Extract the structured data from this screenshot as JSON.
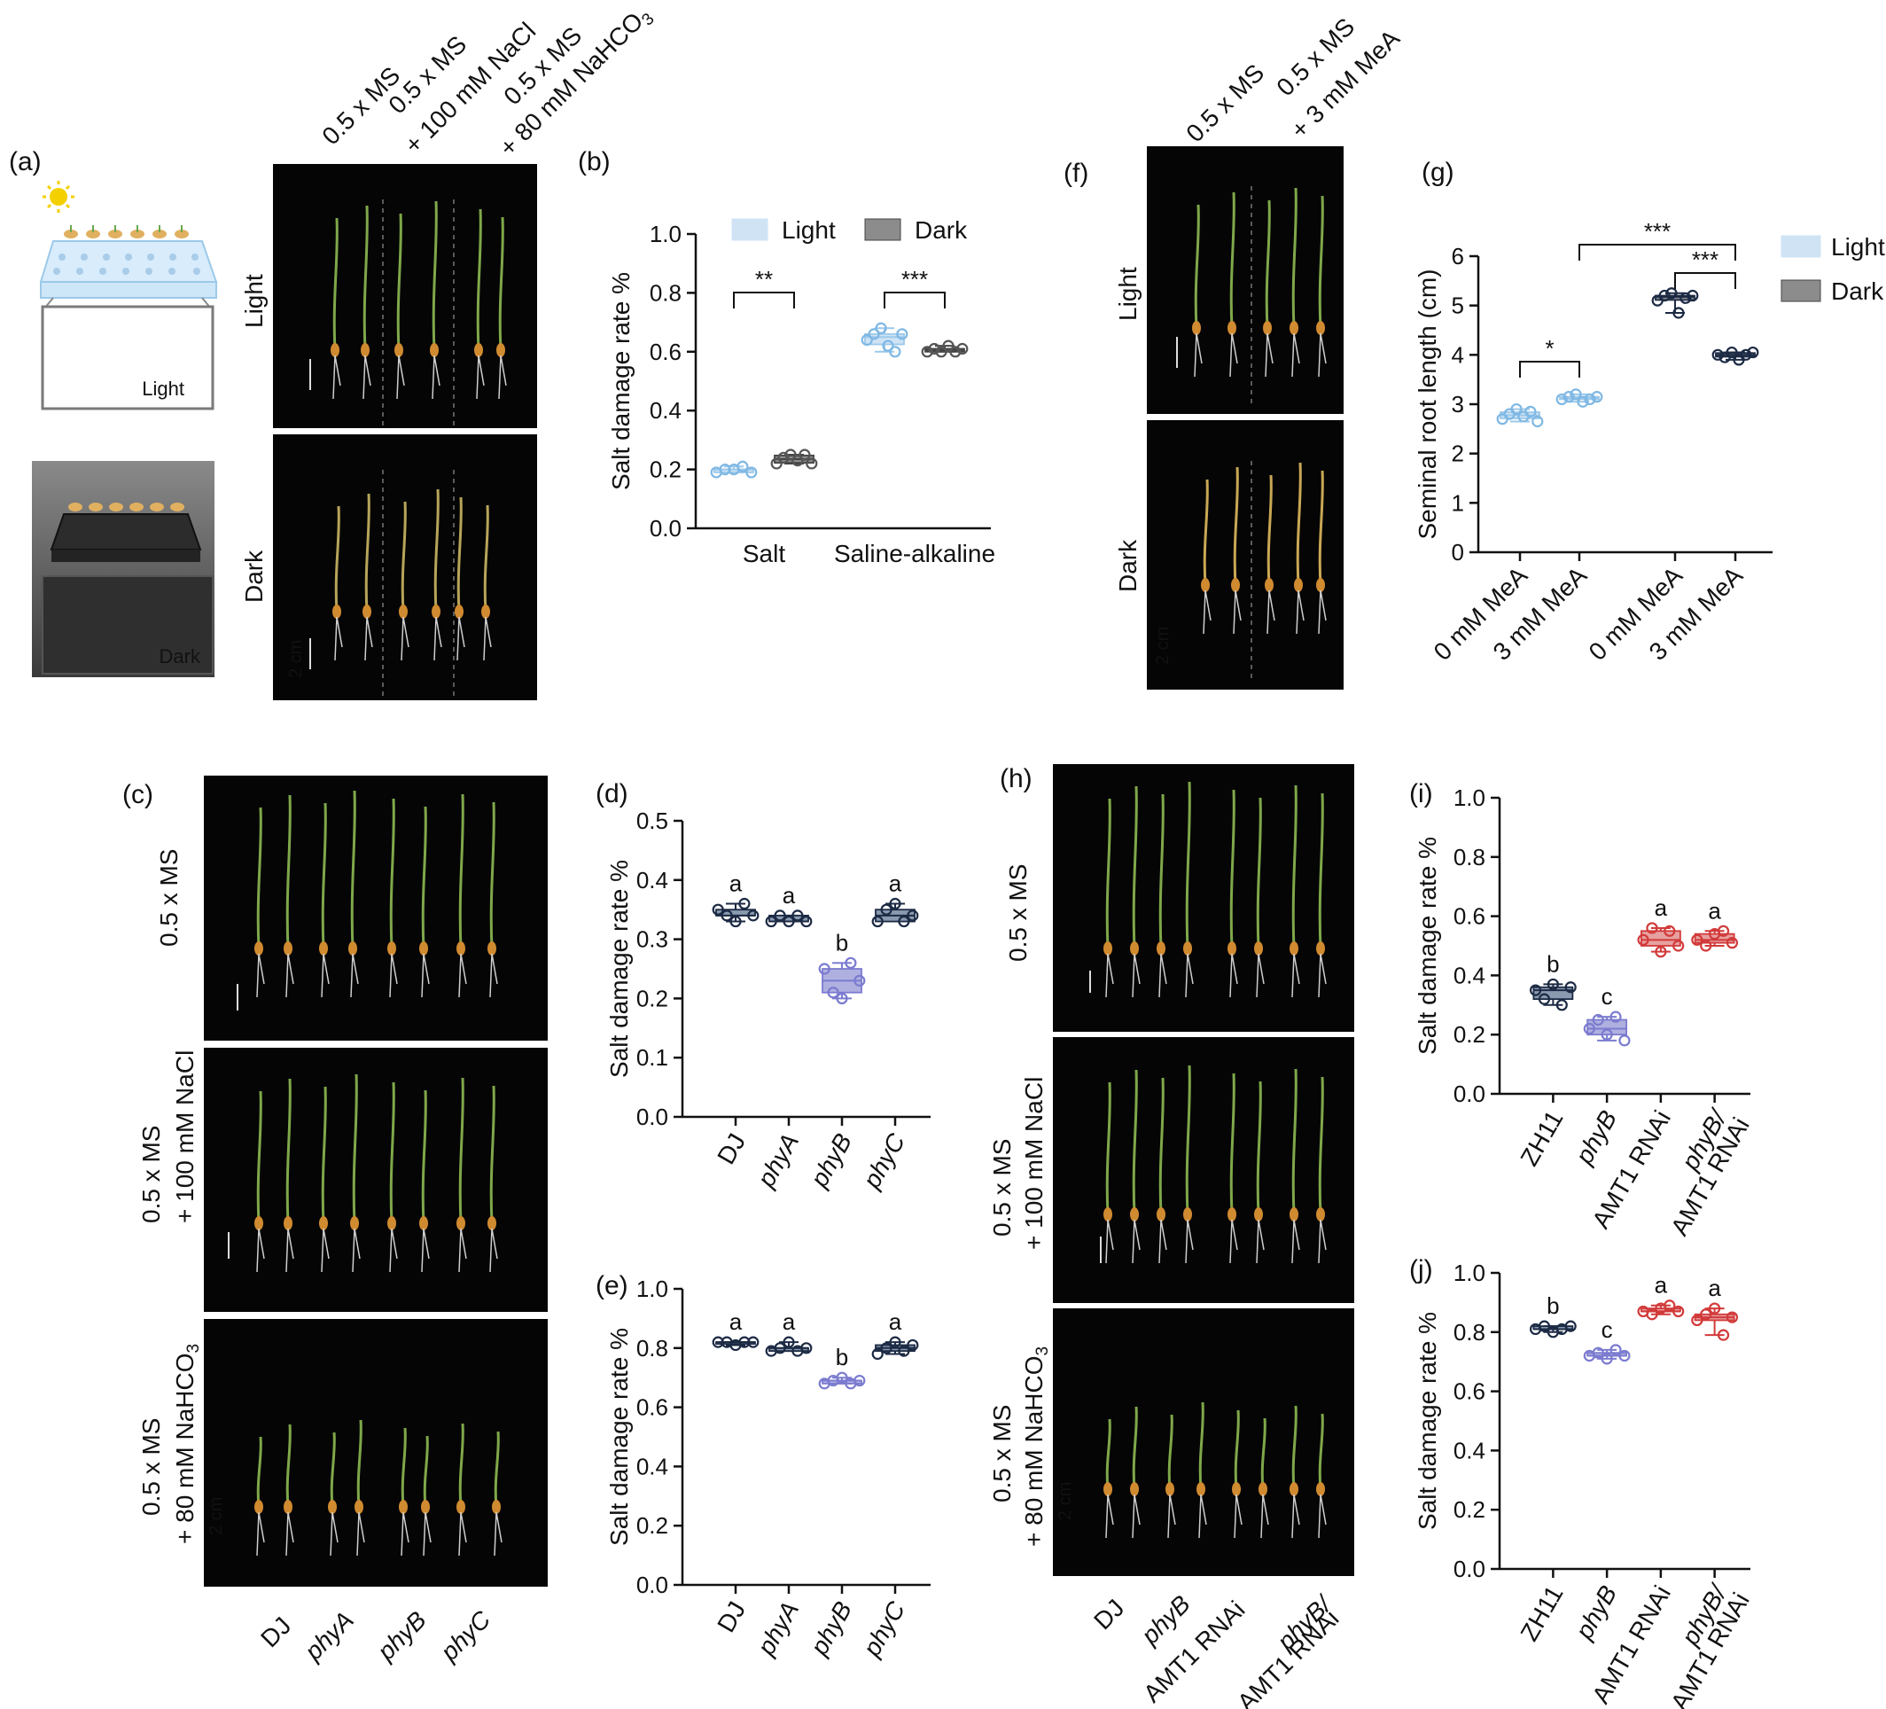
{
  "panels": {
    "a": {
      "letter": "(a)",
      "light_box_label": "Light",
      "dark_box_label": "Dark",
      "col_labels": [
        [
          "0.5 x MS"
        ],
        [
          "0.5 x MS",
          "+ 100 mM NaCl"
        ],
        [
          "0.5 x MS",
          "+ 80 mM NaHCO3"
        ]
      ],
      "row_labels": [
        "Light",
        "Dark"
      ],
      "scale": "2 cm"
    },
    "b": {
      "letter": "(b)"
    },
    "c": {
      "letter": "(c)",
      "row_labels": [
        [
          "0.5 x MS"
        ],
        [
          "0.5 x MS",
          "+ 100 mM NaCl"
        ],
        [
          "0.5 x MS",
          "+ 80 mM NaHCO3"
        ]
      ],
      "col_labels": [
        "DJ",
        "phyA",
        "phyB",
        "phyC"
      ],
      "scale": "2 cm"
    },
    "d": {
      "letter": "(d)"
    },
    "e": {
      "letter": "(e)"
    },
    "f": {
      "letter": "(f)",
      "col_labels": [
        [
          "0.5 x MS"
        ],
        [
          "0.5 x MS",
          "+ 3 mM MeA"
        ]
      ],
      "row_labels": [
        "Light",
        "Dark"
      ],
      "scale": "2 cm"
    },
    "g": {
      "letter": "(g)"
    },
    "h": {
      "letter": "(h)",
      "row_labels": [
        [
          "0.5 x MS"
        ],
        [
          "0.5 x MS",
          "+ 100 mM NaCl"
        ],
        [
          "0.5 x MS",
          "+ 80 mM NaHCO3"
        ]
      ],
      "col_labels": [
        [
          "DJ"
        ],
        [
          "phyB"
        ],
        [
          "AMT1 RNAi"
        ],
        [
          "phyB/",
          "AMT1 RNAi"
        ]
      ],
      "scale": "2 cm"
    },
    "i": {
      "letter": "(i)"
    },
    "j": {
      "letter": "(j)"
    }
  },
  "chart_data": [
    {
      "id": "b",
      "type": "box",
      "ylabel": "Salt damage rate %",
      "ylim": [
        0,
        1.0
      ],
      "yticks": [
        "0.0",
        "0.2",
        "0.4",
        "0.6",
        "0.8",
        "1.0"
      ],
      "categories": [
        "Salt",
        "Saline-alkaline"
      ],
      "legend": [
        "Light",
        "Dark"
      ],
      "series": [
        {
          "name": "Light",
          "color": "#cfe3f5",
          "point_color": "#7fb8e4",
          "values": [
            [
              0.19,
              0.2,
              0.2,
              0.21,
              0.19
            ],
            [
              0.64,
              0.66,
              0.68,
              0.62,
              0.6,
              0.66
            ]
          ]
        },
        {
          "name": "Dark",
          "color": "#8c8c8c",
          "point_color": "#555555",
          "values": [
            [
              0.22,
              0.24,
              0.25,
              0.23,
              0.25,
              0.22
            ],
            [
              0.6,
              0.61,
              0.6,
              0.62,
              0.6,
              0.61
            ]
          ]
        }
      ],
      "significance": [
        "**",
        "***"
      ]
    },
    {
      "id": "d",
      "type": "box",
      "ylabel": "Salt damage rate %",
      "ylim": [
        0,
        0.5
      ],
      "yticks": [
        "0.0",
        "0.1",
        "0.2",
        "0.3",
        "0.4",
        "0.5"
      ],
      "categories": [
        "DJ",
        "phyA",
        "phyB",
        "phyC"
      ],
      "colors": [
        "#8a9bb0",
        "#8a9bb0",
        "#b0b0e0",
        "#8a9bb0"
      ],
      "values": [
        [
          0.35,
          0.34,
          0.33,
          0.36,
          0.34
        ],
        [
          0.33,
          0.34,
          0.33,
          0.34,
          0.33
        ],
        [
          0.25,
          0.21,
          0.2,
          0.26,
          0.23
        ],
        [
          0.33,
          0.35,
          0.36,
          0.33,
          0.34
        ]
      ],
      "letters": [
        "a",
        "a",
        "b",
        "a"
      ]
    },
    {
      "id": "e",
      "type": "box",
      "ylabel": "Salt damage rate %",
      "ylim": [
        0,
        1.0
      ],
      "yticks": [
        "0.0",
        "0.2",
        "0.4",
        "0.6",
        "0.8",
        "1.0"
      ],
      "categories": [
        "DJ",
        "phyA",
        "phyB",
        "phyC"
      ],
      "colors": [
        "#8a9bb0",
        "#8a9bb0",
        "#b0b0e0",
        "#8a9bb0"
      ],
      "values": [
        [
          0.82,
          0.82,
          0.81,
          0.82,
          0.82
        ],
        [
          0.79,
          0.8,
          0.82,
          0.79,
          0.8
        ],
        [
          0.68,
          0.69,
          0.7,
          0.68,
          0.69
        ],
        [
          0.78,
          0.8,
          0.82,
          0.79,
          0.81
        ]
      ],
      "letters": [
        "a",
        "a",
        "b",
        "a"
      ]
    },
    {
      "id": "g",
      "type": "box",
      "ylabel": "Seminal root length (cm)",
      "ylim": [
        0,
        6
      ],
      "yticks": [
        "0",
        "1",
        "2",
        "3",
        "4",
        "5",
        "6"
      ],
      "categories": [
        "0 mM MeA",
        "3 mM MeA",
        "0 mM MeA",
        "3 mM MeA"
      ],
      "colors": [
        "#cfe3f5",
        "#cfe3f5",
        "#8c8c8c",
        "#8c8c8c"
      ],
      "point_colors": [
        "#7fb8e4",
        "#7fb8e4",
        "#1c2a44",
        "#1c2a44"
      ],
      "values": [
        [
          2.7,
          2.8,
          2.9,
          2.75,
          2.85,
          2.65
        ],
        [
          3.1,
          3.15,
          3.2,
          3.05,
          3.1,
          3.15
        ],
        [
          5.1,
          5.2,
          5.25,
          4.85,
          5.15,
          5.2
        ],
        [
          4.0,
          3.95,
          4.05,
          3.9,
          4.0,
          4.05
        ]
      ],
      "legend": [
        "Light",
        "Dark"
      ],
      "significance": [
        "*",
        "***",
        "***"
      ]
    },
    {
      "id": "i",
      "type": "box",
      "ylabel": "Salt damage rate %",
      "ylim": [
        0,
        1.0
      ],
      "yticks": [
        "0.0",
        "0.2",
        "0.4",
        "0.6",
        "0.8",
        "1.0"
      ],
      "categories": [
        "ZH11",
        "phyB",
        "AMT1 RNAi",
        "phyB/ AMT1 RNAi"
      ],
      "colors": [
        "#8a9bb0",
        "#b0b0e0",
        "#e7a0a0",
        "#e7a0a0"
      ],
      "values": [
        [
          0.35,
          0.32,
          0.37,
          0.3,
          0.36
        ],
        [
          0.22,
          0.25,
          0.2,
          0.26,
          0.18
        ],
        [
          0.52,
          0.56,
          0.48,
          0.55,
          0.5
        ],
        [
          0.52,
          0.5,
          0.54,
          0.55,
          0.51
        ]
      ],
      "letters": [
        "b",
        "c",
        "a",
        "a"
      ]
    },
    {
      "id": "j",
      "type": "box",
      "ylabel": "Salt damage rate %",
      "ylim": [
        0,
        1.0
      ],
      "yticks": [
        "0.0",
        "0.2",
        "0.4",
        "0.6",
        "0.8",
        "1.0"
      ],
      "categories": [
        "ZH11",
        "phyB",
        "AMT1 RNAi",
        "phyB/ AMT1 RNAi"
      ],
      "colors": [
        "#8a9bb0",
        "#b0b0e0",
        "#e7a0a0",
        "#e7a0a0"
      ],
      "values": [
        [
          0.81,
          0.82,
          0.8,
          0.81,
          0.82
        ],
        [
          0.72,
          0.73,
          0.71,
          0.74,
          0.72
        ],
        [
          0.87,
          0.86,
          0.88,
          0.89,
          0.87
        ],
        [
          0.84,
          0.86,
          0.88,
          0.79,
          0.85
        ]
      ],
      "letters": [
        "b",
        "c",
        "a",
        "a"
      ]
    }
  ]
}
